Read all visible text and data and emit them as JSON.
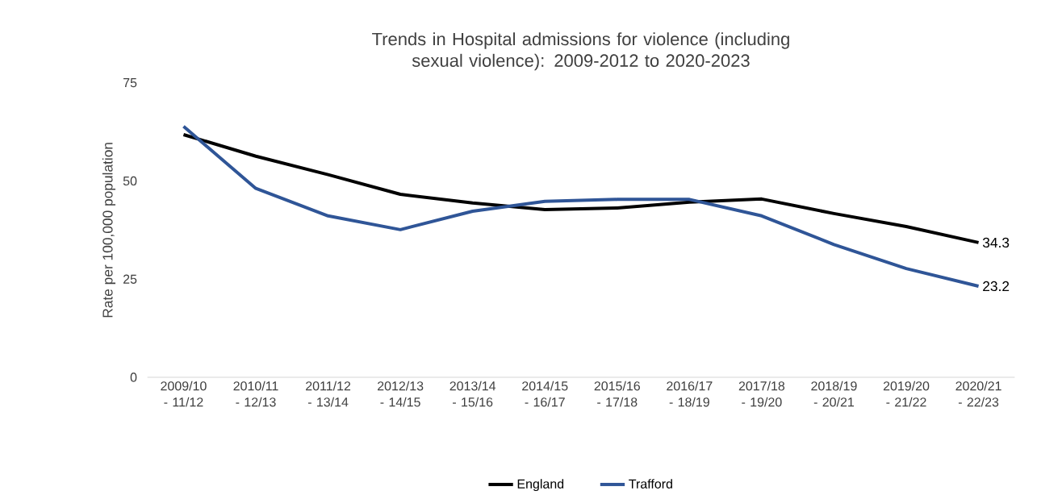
{
  "chart_data": {
    "type": "line",
    "title": "Trends in Hospital admissions for violence (including sexual violence): 2009-2012 to 2020-2023",
    "ylabel": "Rate per 100,000 population",
    "categories": [
      "2009/10 - 11/12",
      "2010/11 - 12/13",
      "2011/12 - 13/14",
      "2012/13 - 14/15",
      "2013/14 - 15/16",
      "2014/15 - 16/17",
      "2015/16 - 17/18",
      "2016/17 - 18/19",
      "2017/18 - 19/20",
      "2018/19 - 20/21",
      "2019/20 - 21/22",
      "2020/21 - 22/23"
    ],
    "series": [
      {
        "name": "England",
        "color": "#000000",
        "values": [
          61.8,
          56.3,
          51.6,
          46.6,
          44.4,
          42.7,
          43.1,
          44.6,
          45.4,
          41.7,
          38.4,
          34.3
        ],
        "value_labels": [
          null,
          null,
          null,
          null,
          null,
          null,
          null,
          null,
          null,
          null,
          null,
          "34.3"
        ]
      },
      {
        "name": "Trafford",
        "color": "#2f5597",
        "values": [
          63.9,
          48.1,
          41.1,
          37.6,
          42.3,
          44.8,
          45.3,
          45.3,
          41.1,
          33.8,
          27.7,
          23.2
        ],
        "value_labels": [
          null,
          null,
          null,
          null,
          null,
          null,
          null,
          null,
          null,
          null,
          null,
          "23.2"
        ]
      }
    ],
    "ylim": [
      0,
      75
    ],
    "yticks": [
      0,
      25,
      50,
      75
    ],
    "legend": "bottom"
  }
}
